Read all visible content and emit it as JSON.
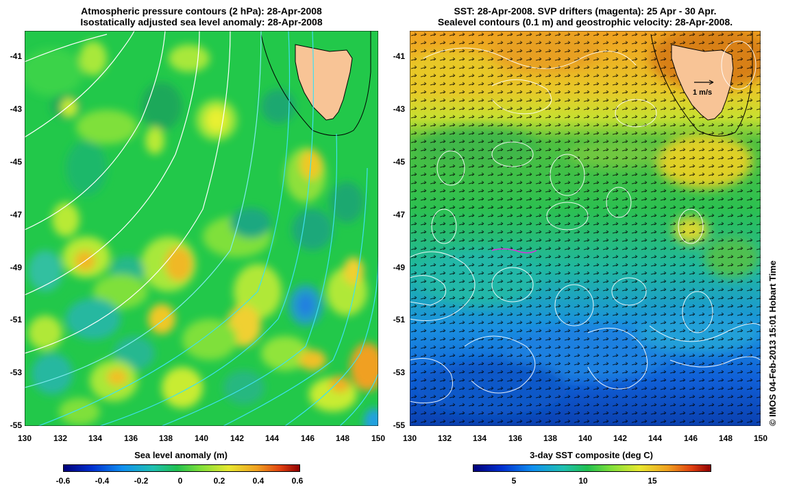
{
  "left_panel": {
    "title_line1": "Atmospheric pressure contours (2 hPa): 28-Apr-2008",
    "title_line2": "Isostatically adjusted sea level anomaly: 28-Apr-2008",
    "y_ticks": [
      "-41",
      "-43",
      "-45",
      "-47",
      "-49",
      "-51",
      "-53",
      "-55"
    ],
    "x_ticks": [
      "130",
      "132",
      "134",
      "136",
      "138",
      "140",
      "142",
      "144",
      "146",
      "148",
      "150"
    ],
    "colorbar_label": "Sea level anomaly (m)",
    "colorbar_ticks": [
      "-0.6",
      "-0.4",
      "-0.2",
      "0",
      "0.2",
      "0.4",
      "0.6"
    ],
    "colorbar_range": [
      -0.6,
      0.6
    ]
  },
  "right_panel": {
    "title_line1": "SST: 28-Apr-2008. SVP drifters (magenta): 25 Apr - 30 Apr.",
    "title_line2": "Sealevel contours (0.1 m) and geostrophic velocity: 28-Apr-2008.",
    "y_ticks": [
      "-41",
      "-43",
      "-45",
      "-47",
      "-49",
      "-51",
      "-53",
      "-55"
    ],
    "x_ticks": [
      "130",
      "132",
      "134",
      "136",
      "138",
      "140",
      "142",
      "144",
      "146",
      "148",
      "150"
    ],
    "velocity_scale_label": "1 m/s",
    "colorbar_label": "3-day SST composite (deg C)",
    "colorbar_ticks": [
      "5",
      "10",
      "15"
    ]
  },
  "map_extent": {
    "lon_min": 130,
    "lon_max": 150,
    "lat_min": -55,
    "lat_max": -40
  },
  "credit": "© IMOS 04-Feb-2013 15:01 Hobart Time",
  "colors": {
    "land": "#f8c496",
    "contour_white": "#ffffff",
    "contour_cyan": "#40e0f0",
    "sla_base": "#22c84a"
  }
}
